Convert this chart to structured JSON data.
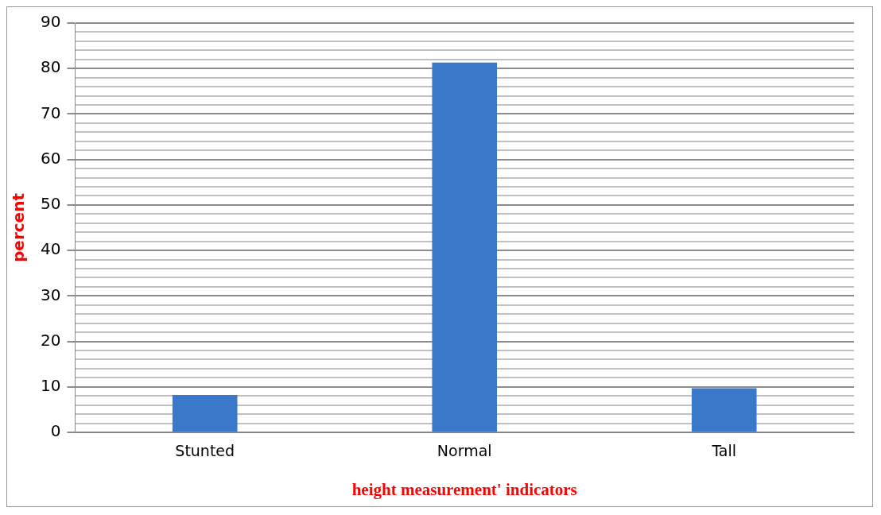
{
  "chart_data": {
    "type": "bar",
    "xlabel": "height measurement' indicators",
    "ylabel": "percent",
    "categories": [
      "Stunted",
      "Normal",
      "Tall"
    ],
    "values": [
      8.2,
      81.3,
      9.7
    ],
    "color": "#3a78c9",
    "ylim": [
      0,
      90
    ],
    "yticks": [
      0,
      {
        "value": 2,
        "label": null
      },
      {
        "value": 4,
        "label": null
      },
      {
        "value": 6,
        "label": null
      },
      {
        "value": 8,
        "label": null
      },
      10,
      {
        "value": 12,
        "label": null
      },
      {
        "value": 14,
        "label": null
      },
      {
        "value": 16,
        "label": null
      },
      {
        "value": 18,
        "label": null
      },
      20,
      {
        "value": 22,
        "label": null
      },
      {
        "value": 24,
        "label": null
      },
      {
        "value": 26,
        "label": null
      },
      {
        "value": 28,
        "label": null
      },
      30,
      {
        "value": 32,
        "label": null
      },
      {
        "value": 34,
        "label": null
      },
      {
        "value": 36,
        "label": null
      },
      {
        "value": 38,
        "label": null
      },
      40,
      {
        "value": 42,
        "label": null
      },
      {
        "value": 44,
        "label": null
      },
      {
        "value": 46,
        "label": null
      },
      {
        "value": 48,
        "label": null
      },
      50,
      {
        "value": 52,
        "label": null
      },
      {
        "value": 54,
        "label": null
      },
      {
        "value": 56,
        "label": null
      },
      {
        "value": 58,
        "label": null
      },
      60,
      {
        "value": 62,
        "label": null
      },
      {
        "value": 64,
        "label": null
      },
      {
        "value": 66,
        "label": null
      },
      {
        "value": 68,
        "label": null
      },
      70,
      {
        "value": 72,
        "label": null
      },
      {
        "value": 74,
        "label": null
      },
      {
        "value": 76,
        "label": null
      },
      {
        "value": 78,
        "label": null
      },
      80,
      {
        "value": 82,
        "label": null
      },
      {
        "value": 84,
        "label": null
      },
      {
        "value": 86,
        "label": null
      },
      {
        "value": 88,
        "label": null
      },
      90
    ],
    "grid": "y",
    "legend": false
  }
}
